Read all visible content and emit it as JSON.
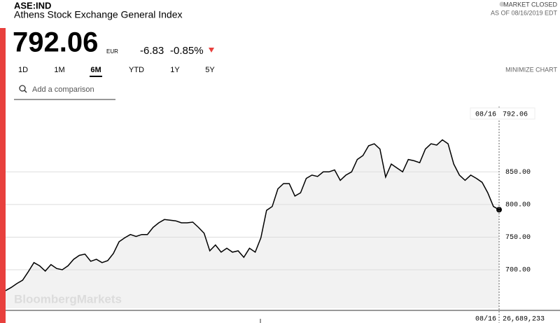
{
  "header": {
    "ticker": "ASE:IND",
    "name": "Athens Stock Exchange General Index",
    "status": "MARKET CLOSED",
    "as_of": "AS OF 08/16/2019 EDT",
    "price": "792.06",
    "currency": "EUR",
    "change": "-6.83",
    "change_pct": "-0.85%"
  },
  "tabs": [
    {
      "label": "1D",
      "active": false
    },
    {
      "label": "1M",
      "active": false
    },
    {
      "label": "6M",
      "active": true
    },
    {
      "label": "YTD",
      "active": false
    },
    {
      "label": "1Y",
      "active": false
    },
    {
      "label": "5Y",
      "active": false
    }
  ],
  "minimize": "MINIMIZE CHART",
  "comparison_placeholder": "Add a comparison",
  "watermark": "BloombergMarkets",
  "chart_data": {
    "type": "line",
    "color": "#000000",
    "fill": "#f2f2f2",
    "grid": true,
    "values": [
      668,
      673,
      679,
      684,
      697,
      711,
      706,
      698,
      708,
      702,
      700,
      706,
      716,
      722,
      724,
      713,
      716,
      711,
      714,
      725,
      743,
      749,
      754,
      751,
      754,
      754,
      765,
      772,
      777,
      776,
      775,
      772,
      772,
      773,
      765,
      756,
      729,
      738,
      727,
      733,
      727,
      729,
      719,
      733,
      727,
      749,
      791,
      797,
      824,
      832,
      832,
      813,
      818,
      840,
      845,
      843,
      850,
      850,
      853,
      837,
      845,
      850,
      869,
      875,
      890,
      893,
      885,
      842,
      862,
      856,
      850,
      869,
      867,
      864,
      885,
      893,
      891,
      899,
      893,
      862,
      845,
      837,
      845,
      840,
      834,
      818,
      797,
      792.06
    ],
    "ylim": [
      641,
      963
    ],
    "yticks": [
      {
        "value": 700,
        "label": "700.00"
      },
      {
        "value": 750,
        "label": "750.00"
      },
      {
        "value": 800,
        "label": "800.00"
      },
      {
        "value": 850,
        "label": "850.00"
      }
    ],
    "last_date": "08/16",
    "volume_label": "26,689,233"
  }
}
